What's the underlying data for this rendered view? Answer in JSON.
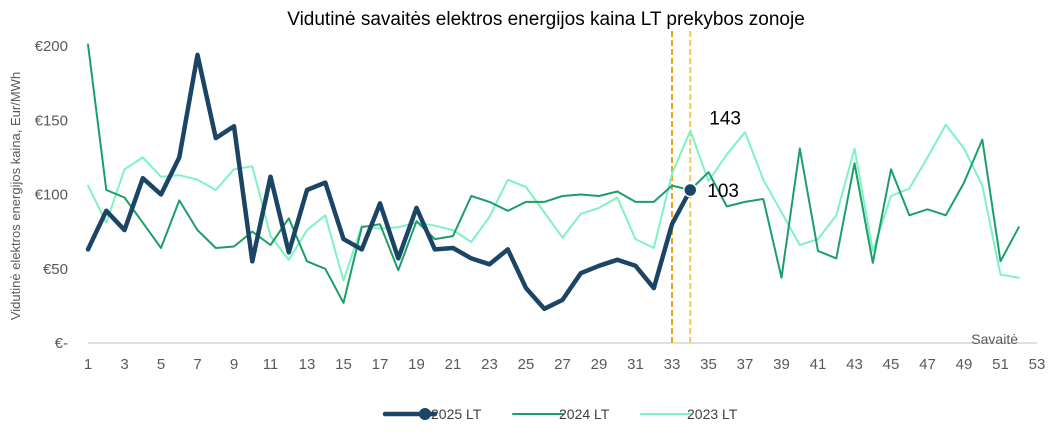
{
  "chart_data": {
    "type": "line",
    "title": "Vidutinė savaitės elektros energijos kaina LT prekybos zonoje",
    "ylabel": "Vidutinė elektros energijos kaina, Eur/MWh",
    "xlabel": "Savaitė",
    "ylim": [
      0,
      200
    ],
    "xlim": [
      1,
      53
    ],
    "y_ticks": [
      {
        "value": 0,
        "label": "€-"
      },
      {
        "value": 50,
        "label": "€50"
      },
      {
        "value": 100,
        "label": "€100"
      },
      {
        "value": 150,
        "label": "€150"
      },
      {
        "value": 200,
        "label": "€200"
      }
    ],
    "x_ticks": [
      "1",
      "3",
      "5",
      "7",
      "9",
      "11",
      "13",
      "15",
      "17",
      "19",
      "21",
      "23",
      "25",
      "27",
      "29",
      "31",
      "33",
      "35",
      "37",
      "39",
      "41",
      "43",
      "45",
      "47",
      "49",
      "51",
      "53"
    ],
    "vertical_lines": [
      33,
      34
    ],
    "annotations": [
      {
        "text": "143",
        "x": 34,
        "y": 143
      },
      {
        "text": "103",
        "x": 34,
        "y": 103
      }
    ],
    "legend_position": "bottom",
    "series": [
      {
        "name": "2025 LT",
        "color": "#1b4565",
        "x": [
          1,
          2,
          3,
          4,
          5,
          6,
          7,
          8,
          9,
          10,
          11,
          12,
          13,
          14,
          15,
          16,
          17,
          18,
          19,
          20,
          21,
          22,
          23,
          24,
          25,
          26,
          27,
          28,
          29,
          30,
          31,
          32,
          33,
          34
        ],
        "values": [
          63,
          89,
          76,
          111,
          100,
          125,
          194,
          138,
          146,
          55,
          112,
          61,
          103,
          108,
          70,
          63,
          94,
          57,
          91,
          63,
          64,
          57,
          53,
          63,
          37,
          23,
          29,
          47,
          52,
          56,
          52,
          37,
          80,
          103
        ]
      },
      {
        "name": "2024 LT",
        "color": "#1c9e69",
        "x": [
          1,
          2,
          3,
          4,
          5,
          6,
          7,
          8,
          9,
          10,
          11,
          12,
          13,
          14,
          15,
          16,
          17,
          18,
          19,
          20,
          21,
          22,
          23,
          24,
          25,
          26,
          27,
          28,
          29,
          30,
          31,
          32,
          33,
          34,
          35,
          36,
          37,
          38,
          39,
          40,
          41,
          42,
          43,
          44,
          45,
          46,
          47,
          48,
          49,
          50,
          51,
          52
        ],
        "values": [
          201,
          103,
          98,
          81,
          64,
          96,
          76,
          64,
          65,
          75,
          66,
          84,
          55,
          50,
          27,
          78,
          80,
          49,
          82,
          70,
          72,
          99,
          95,
          89,
          95,
          95,
          99,
          100,
          99,
          102,
          95,
          95,
          106,
          103,
          115,
          92,
          95,
          97,
          44,
          131,
          62,
          57,
          121,
          54,
          117,
          86,
          90,
          86,
          108,
          137,
          55,
          78
        ]
      },
      {
        "name": "2023 LT",
        "color": "#7ef2c6",
        "x": [
          1,
          2,
          3,
          4,
          5,
          6,
          7,
          8,
          9,
          10,
          11,
          12,
          13,
          14,
          15,
          16,
          17,
          18,
          19,
          20,
          21,
          22,
          23,
          24,
          25,
          26,
          27,
          28,
          29,
          30,
          31,
          32,
          33,
          34,
          35,
          36,
          37,
          38,
          39,
          40,
          41,
          42,
          43,
          44,
          45,
          46,
          47,
          48,
          49,
          50,
          51,
          52
        ],
        "values": [
          106,
          81,
          117,
          125,
          112,
          113,
          110,
          103,
          117,
          119,
          72,
          56,
          76,
          86,
          42,
          79,
          77,
          78,
          81,
          79,
          76,
          68,
          85,
          110,
          105,
          88,
          71,
          87,
          91,
          98,
          70,
          64,
          114,
          143,
          109,
          127,
          142,
          110,
          88,
          66,
          70,
          86,
          131,
          62,
          99,
          104,
          125,
          147,
          131,
          106,
          46,
          44
        ]
      }
    ]
  }
}
